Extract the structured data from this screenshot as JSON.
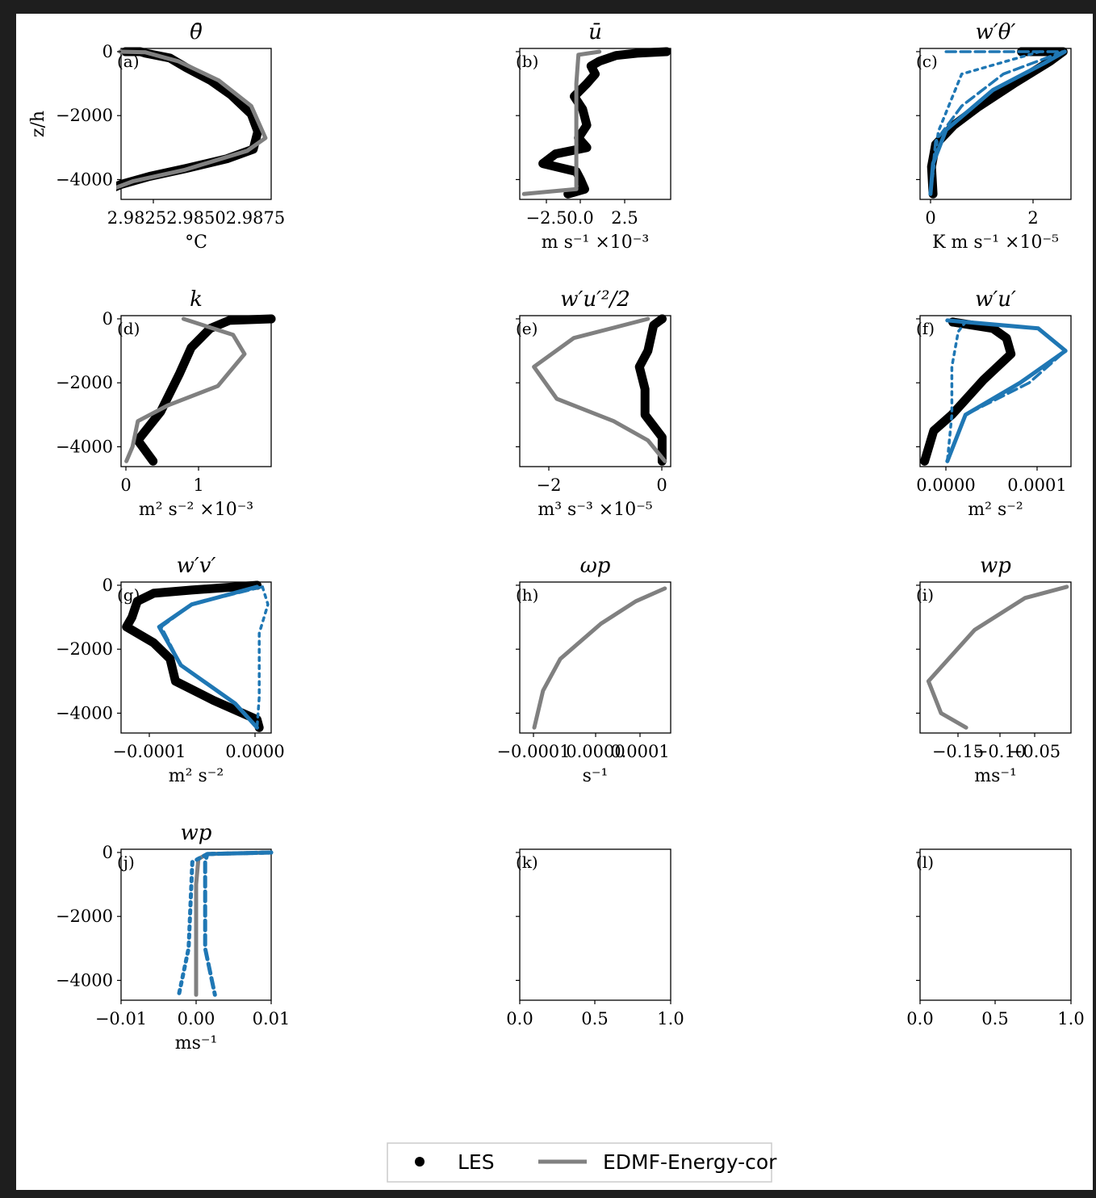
{
  "chart_data": [
    {
      "type": "line",
      "panel": "(a)",
      "title": "θ̄",
      "xlabel": "°C",
      "ylabel": "z/h",
      "xticks": [
        "2.98252.98502.9875"
      ],
      "yticks": [
        "0",
        "−2000",
        "−4000"
      ],
      "xlim": [
        2.9814,
        2.98878
      ],
      "ylim": [
        -4620,
        100
      ],
      "series": [
        {
          "name": "LES",
          "values": [
            [
              2.98163,
              0
            ],
            [
              2.98235,
              0
            ],
            [
              2.9826,
              -50
            ],
            [
              2.9838,
              -200
            ],
            [
              2.9846,
              -500
            ],
            [
              2.9858,
              -900
            ],
            [
              2.9868,
              -1350
            ],
            [
              2.9878,
              -1950
            ],
            [
              2.98812,
              -2500
            ],
            [
              2.9879,
              -3050
            ],
            [
              2.9866,
              -3350
            ],
            [
              2.9846,
              -3650
            ],
            [
              2.9828,
              -3900
            ],
            [
              2.9814,
              -4150
            ],
            [
              2.98028,
              -4450
            ]
          ]
        },
        {
          "name": "EDMF-Energy-cor",
          "values": [
            [
              2.98135,
              0
            ],
            [
              2.9826,
              -20
            ],
            [
              2.9842,
              -300
            ],
            [
              2.9862,
              -900
            ],
            [
              2.9878,
              -1700
            ],
            [
              2.9885,
              -2700
            ],
            [
              2.9876,
              -3100
            ],
            [
              2.9845,
              -3700
            ],
            [
              2.982,
              -4050
            ],
            [
              2.9803,
              -4450
            ]
          ]
        }
      ]
    },
    {
      "type": "line",
      "panel": "(b)",
      "title": "ū",
      "xlabel": "m s⁻¹ ×10⁻³",
      "xticks": [
        "−2.5",
        "0.0",
        "2.5"
      ],
      "xlim": [
        -2.9,
        4.3
      ],
      "ylim": [
        -4620,
        100
      ],
      "series": [
        {
          "name": "LES",
          "values": [
            [
              4.1,
              0
            ],
            [
              2.7,
              -50
            ],
            [
              1.7,
              -120
            ],
            [
              0.9,
              -300
            ],
            [
              0.5,
              -450
            ],
            [
              0.7,
              -700
            ],
            [
              0.3,
              -1000
            ],
            [
              -0.3,
              -1400
            ],
            [
              0.1,
              -1800
            ],
            [
              0.3,
              -2300
            ],
            [
              -0.1,
              -2700
            ],
            [
              0.3,
              -3000
            ],
            [
              -1.2,
              -3200
            ],
            [
              -1.8,
              -3500
            ],
            [
              -0.2,
              -3750
            ],
            [
              0.0,
              -4000
            ],
            [
              0.2,
              -4300
            ],
            [
              -0.6,
              -4450
            ]
          ]
        },
        {
          "name": "EDMF-Energy-cor",
          "values": [
            [
              0.9,
              0
            ],
            [
              -0.1,
              -100
            ],
            [
              -0.2,
              -1000
            ],
            [
              -0.2,
              -3000
            ],
            [
              -0.2,
              -4300
            ],
            [
              -2.7,
              -4450
            ]
          ]
        }
      ]
    },
    {
      "type": "line",
      "panel": "(c)",
      "title": "w′θ′",
      "xlabel": "K m s⁻¹ ×10⁻⁵",
      "xticks": [
        "0",
        "2"
      ],
      "xlim": [
        -0.2,
        2.7
      ],
      "ylim": [
        -4620,
        100
      ],
      "series": [
        {
          "name": "LES",
          "values": [
            [
              1.75,
              0
            ],
            [
              2.55,
              0
            ],
            [
              2.3,
              -300
            ],
            [
              1.6,
              -1000
            ],
            [
              0.9,
              -1750
            ],
            [
              0.45,
              -2300
            ],
            [
              0.1,
              -2900
            ],
            [
              0.02,
              -3600
            ],
            [
              0.05,
              -4450
            ]
          ]
        },
        {
          "name": "EDMF-Energy-cor",
          "values": [
            [
              2.58,
              0
            ],
            [
              2.2,
              -350
            ],
            [
              1.2,
              -1200
            ],
            [
              0.3,
              -2450
            ],
            [
              0.05,
              -3500
            ],
            [
              0,
              -4450
            ]
          ]
        },
        {
          "name": "",
          "style": "dashed",
          "values": [
            [
              0.3,
              0
            ],
            [
              2.55,
              0
            ],
            [
              1.4,
              -700
            ],
            [
              0.6,
              -1700
            ],
            [
              0.1,
              -2800
            ],
            [
              0,
              -4450
            ]
          ]
        },
        {
          "name": "",
          "style": "dotted",
          "values": [
            [
              2.1,
              0
            ],
            [
              0.6,
              -700
            ],
            [
              0.15,
              -2500
            ],
            [
              0,
              -4450
            ]
          ]
        }
      ]
    },
    {
      "type": "line",
      "panel": "(d)",
      "title": "k",
      "xlabel": "m² s⁻² ×10⁻³",
      "xticks": [
        "0",
        "1"
      ],
      "xlim": [
        -0.07,
        1.9
      ],
      "ylim": [
        -4620,
        100
      ],
      "series": [
        {
          "name": "LES",
          "values": [
            [
              1.9,
              0
            ],
            [
              1.35,
              -50
            ],
            [
              1.1,
              -300
            ],
            [
              0.85,
              -900
            ],
            [
              0.7,
              -1700
            ],
            [
              0.45,
              -2900
            ],
            [
              0.15,
              -3800
            ],
            [
              0.35,
              -4450
            ]
          ]
        },
        {
          "name": "EDMF-Energy-cor",
          "values": [
            [
              0.75,
              0
            ],
            [
              1.4,
              -500
            ],
            [
              1.55,
              -1100
            ],
            [
              1.2,
              -2100
            ],
            [
              0.55,
              -2700
            ],
            [
              0.15,
              -3200
            ],
            [
              0.08,
              -4000
            ],
            [
              0.0,
              -4450
            ]
          ]
        }
      ]
    },
    {
      "type": "line",
      "panel": "(e)",
      "title": "w′u′²/2",
      "xlabel": "m³ s⁻³ ×10⁻⁵",
      "xticks": [
        "−2",
        "0"
      ],
      "xlim": [
        -2.55,
        0.1
      ],
      "ylim": [
        -4620,
        100
      ],
      "series": [
        {
          "name": "LES",
          "values": [
            [
              -0.05,
              0
            ],
            [
              -0.2,
              -200
            ],
            [
              -0.3,
              -1000
            ],
            [
              -0.45,
              -1500
            ],
            [
              -0.35,
              -2200
            ],
            [
              -0.35,
              -3000
            ],
            [
              -0.05,
              -3700
            ],
            [
              -0.05,
              -4450
            ]
          ]
        },
        {
          "name": "EDMF-Energy-cor",
          "values": [
            [
              -0.3,
              0
            ],
            [
              -1.6,
              -600
            ],
            [
              -2.3,
              -1500
            ],
            [
              -1.9,
              -2500
            ],
            [
              -0.9,
              -3200
            ],
            [
              -0.3,
              -3800
            ],
            [
              0,
              -4450
            ]
          ]
        }
      ]
    },
    {
      "type": "line",
      "panel": "(f)",
      "title": "w′u′",
      "xlabel": "m² s⁻²",
      "xticks": [
        "0.0000",
        "0.0001"
      ],
      "xlim": [
        -3e-05,
        0.000136
      ],
      "ylim": [
        -4620,
        100
      ],
      "series": [
        {
          "name": "LES",
          "values": [
            [
              6e-06,
              -100
            ],
            [
              5e-05,
              -300
            ],
            [
              6.5e-05,
              -600
            ],
            [
              7e-05,
              -1100
            ],
            [
              4e-05,
              -1900
            ],
            [
              5e-06,
              -3000
            ],
            [
              -1.5e-05,
              -3500
            ],
            [
              -2.5e-05,
              -4450
            ]
          ]
        },
        {
          "name": "EDMF-Energy-cor",
          "values": [
            [
              0,
              -50
            ],
            [
              0.0001,
              -300
            ],
            [
              0.00013,
              -1000
            ],
            [
              8e-05,
              -2000
            ],
            [
              2e-05,
              -3000
            ],
            [
              0,
              -4450
            ]
          ]
        },
        {
          "name": "",
          "style": "dashed",
          "values": [
            [
              0,
              -50
            ],
            [
              0.0001,
              -300
            ],
            [
              0.00013,
              -1000
            ],
            [
              9e-05,
              -2000
            ],
            [
              2e-05,
              -3000
            ],
            [
              0,
              -4450
            ]
          ]
        },
        {
          "name": "",
          "style": "dotted",
          "values": [
            [
              2e-05,
              -100
            ],
            [
              1.2e-05,
              -400
            ],
            [
              5e-06,
              -1500
            ],
            [
              5e-06,
              -3000
            ],
            [
              0,
              -4450
            ]
          ]
        }
      ]
    },
    {
      "type": "line",
      "panel": "(g)",
      "title": "w′v′",
      "xlabel": "m² s⁻²",
      "xticks": [
        "−0.0001",
        "0.0000"
      ],
      "xlim": [
        -0.000125,
        1.3e-05
      ],
      "ylim": [
        -4620,
        100
      ],
      "series": [
        {
          "name": "LES",
          "values": [
            [
              0,
              0
            ],
            [
              -6e-05,
              -150
            ],
            [
              -9.5e-05,
              -250
            ],
            [
              -0.00011,
              -500
            ],
            [
              -0.000115,
              -1000
            ],
            [
              -0.00012,
              -1300
            ],
            [
              -9.5e-05,
              -1800
            ],
            [
              -8e-05,
              -2300
            ],
            [
              -7.5e-05,
              -3000
            ],
            [
              -4e-05,
              -3600
            ],
            [
              0,
              -4200
            ],
            [
              2e-06,
              -4450
            ]
          ]
        },
        {
          "name": "EDMF-Energy-cor",
          "values": [
            [
              0,
              -50
            ],
            [
              -6e-05,
              -600
            ],
            [
              -9e-05,
              -1300
            ],
            [
              -7e-05,
              -2500
            ],
            [
              -2e-05,
              -3700
            ],
            [
              0,
              -4450
            ]
          ]
        },
        {
          "name": "",
          "style": "dashed",
          "values": [
            [
              5e-06,
              -50
            ],
            [
              -6e-05,
              -600
            ],
            [
              -8.8e-05,
              -1300
            ],
            [
              -7e-05,
              -2500
            ],
            [
              -2e-05,
              -3700
            ],
            [
              0,
              -4450
            ]
          ]
        },
        {
          "name": "",
          "style": "dotted",
          "values": [
            [
              5e-06,
              -50
            ],
            [
              1e-05,
              -600
            ],
            [
              2e-06,
              -1500
            ],
            [
              2e-06,
              -3500
            ],
            [
              0,
              -4450
            ]
          ]
        }
      ]
    },
    {
      "type": "line",
      "panel": "(h)",
      "title": "ωp",
      "xlabel": "s⁻¹",
      "xticks": [
        "−0.0001",
        "0.0000",
        "0.0001"
      ],
      "xlim": [
        -0.00012,
        0.00014
      ],
      "ylim": [
        -4620,
        100
      ],
      "series": [
        {
          "name": "EDMF-Energy-cor",
          "values": [
            [
              0.00013,
              -100
            ],
            [
              8e-05,
              -500
            ],
            [
              2e-05,
              -1200
            ],
            [
              -5e-05,
              -2300
            ],
            [
              -8e-05,
              -3300
            ],
            [
              -9.5e-05,
              -4450
            ]
          ]
        }
      ]
    },
    {
      "type": "line",
      "panel": "(i)",
      "title": "wp",
      "xlabel": "ms⁻¹",
      "xticks": [
        "−0.15",
        "−0.10",
        "−0.05"
      ],
      "xlim": [
        -0.185,
        -0.005
      ],
      "ylim": [
        -4620,
        100
      ],
      "series": [
        {
          "name": "EDMF-Energy-cor",
          "values": [
            [
              -0.01,
              -50
            ],
            [
              -0.06,
              -400
            ],
            [
              -0.12,
              -1400
            ],
            [
              -0.175,
              -3000
            ],
            [
              -0.16,
              -4000
            ],
            [
              -0.13,
              -4450
            ]
          ]
        }
      ]
    },
    {
      "type": "line",
      "panel": "(j)",
      "title": "wp",
      "xlabel": "ms⁻¹",
      "xticks": [
        "−0.01",
        "0.00",
        "0.01"
      ],
      "xlim": [
        -0.01,
        0.01
      ],
      "ylim": [
        -4620,
        100
      ],
      "series": [
        {
          "name": "EDMF-Energy-cor",
          "values": [
            [
              0.01,
              0
            ],
            [
              0.0015,
              -50
            ],
            [
              0.0003,
              -200
            ],
            [
              0,
              -1000
            ],
            [
              0,
              -4450
            ]
          ]
        },
        {
          "name": "",
          "style": "dashed",
          "values": [
            [
              0.01,
              0
            ],
            [
              0.0015,
              -50
            ],
            [
              0.0012,
              -300
            ],
            [
              0.0012,
              -3000
            ],
            [
              0.0025,
              -4450
            ]
          ]
        },
        {
          "name": "",
          "style": "dotted",
          "values": [
            [
              0.01,
              0
            ],
            [
              0.0015,
              -50
            ],
            [
              -0.0005,
              -300
            ],
            [
              -0.001,
              -3000
            ],
            [
              -0.0023,
              -4450
            ]
          ]
        }
      ]
    },
    {
      "type": "line",
      "panel": "(k)",
      "title": "",
      "xlabel": "",
      "xticks": [
        "0.0",
        "0.5",
        "1.0"
      ],
      "xlim": [
        0,
        1
      ],
      "ylim": [
        -4620,
        100
      ],
      "series": []
    },
    {
      "type": "line",
      "panel": "(l)",
      "title": "",
      "xlabel": "",
      "xticks": [
        "0.0",
        "0.5",
        "1.0"
      ],
      "xlim": [
        0,
        1
      ],
      "ylim": [
        -4620,
        100
      ],
      "series": []
    }
  ],
  "legend": {
    "placement": "bottom-center",
    "items": [
      {
        "label": "LES",
        "marker": "dot"
      },
      {
        "label": "EDMF-Energy-cor",
        "marker": "line"
      }
    ]
  },
  "colors": {
    "les": "#000000",
    "edmf": "#808080",
    "blue": "#1f77b4",
    "frame": "#1e1e1e"
  }
}
